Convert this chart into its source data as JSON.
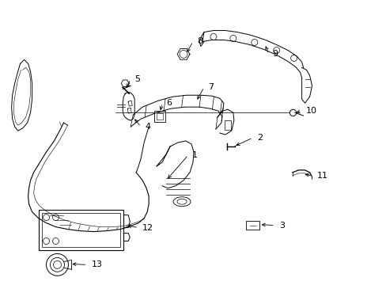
{
  "bg_color": "#ffffff",
  "fig_width": 4.89,
  "fig_height": 3.6,
  "dpi": 100,
  "lw": 0.7,
  "label_fs": 8.0
}
